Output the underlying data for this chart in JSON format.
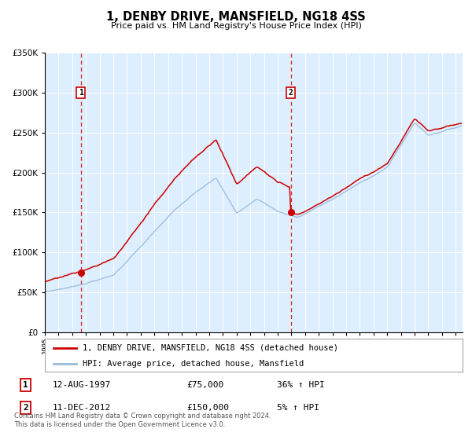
{
  "title": "1, DENBY DRIVE, MANSFIELD, NG18 4SS",
  "subtitle": "Price paid vs. HM Land Registry's House Price Index (HPI)",
  "legend_line1": "1, DENBY DRIVE, MANSFIELD, NG18 4SS (detached house)",
  "legend_line2": "HPI: Average price, detached house, Mansfield",
  "annotation1_label": "1",
  "annotation1_date": "12-AUG-1997",
  "annotation1_price": "£75,000",
  "annotation1_hpi": "36% ↑ HPI",
  "annotation2_label": "2",
  "annotation2_date": "11-DEC-2012",
  "annotation2_price": "£150,000",
  "annotation2_hpi": "5% ↑ HPI",
  "sale1_year": 1997.62,
  "sale1_value": 75000,
  "sale2_year": 2012.95,
  "sale2_value": 150000,
  "price_line_color": "#cc0000",
  "hpi_line_color": "#99bbdd",
  "dashed_line_color": "#cc0000",
  "plot_bg_color": "#ddeeff",
  "ylim": [
    0,
    350000
  ],
  "xlim_start": 1995,
  "xlim_end": 2025.5,
  "grid_color": "#ffffff",
  "footer_text": "Contains HM Land Registry data © Crown copyright and database right 2024.\nThis data is licensed under the Open Government Licence v3.0."
}
